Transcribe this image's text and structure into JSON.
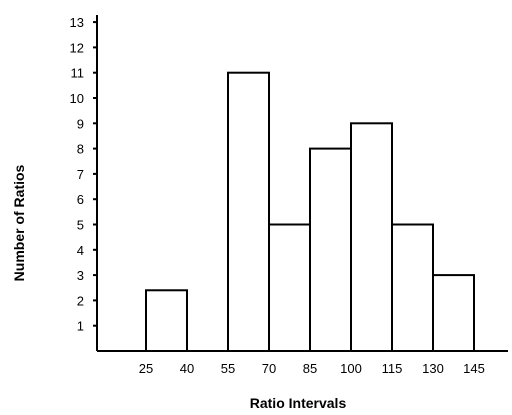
{
  "chart_data": {
    "type": "bar",
    "subtype": "histogram",
    "title": "",
    "xlabel": "Ratio Intervals",
    "ylabel": "Number of Ratios",
    "x_tick_labels": [
      "25",
      "40",
      "55",
      "70",
      "85",
      "100",
      "115",
      "130",
      "145"
    ],
    "y_ticks": [
      1,
      2,
      3,
      4,
      5,
      6,
      7,
      8,
      9,
      10,
      11,
      12,
      13
    ],
    "ylim": [
      0,
      13
    ],
    "bins": [
      {
        "start": 25,
        "end": 40,
        "value": 2.4
      },
      {
        "start": 40,
        "end": 55,
        "value": 0
      },
      {
        "start": 55,
        "end": 70,
        "value": 11
      },
      {
        "start": 70,
        "end": 85,
        "value": 5
      },
      {
        "start": 85,
        "end": 100,
        "value": 8
      },
      {
        "start": 100,
        "end": 115,
        "value": 9
      },
      {
        "start": 115,
        "end": 130,
        "value": 5
      },
      {
        "start": 130,
        "end": 145,
        "value": 3
      }
    ],
    "grid": false,
    "bar_fill": "#ffffff",
    "bar_stroke": "#000000"
  }
}
